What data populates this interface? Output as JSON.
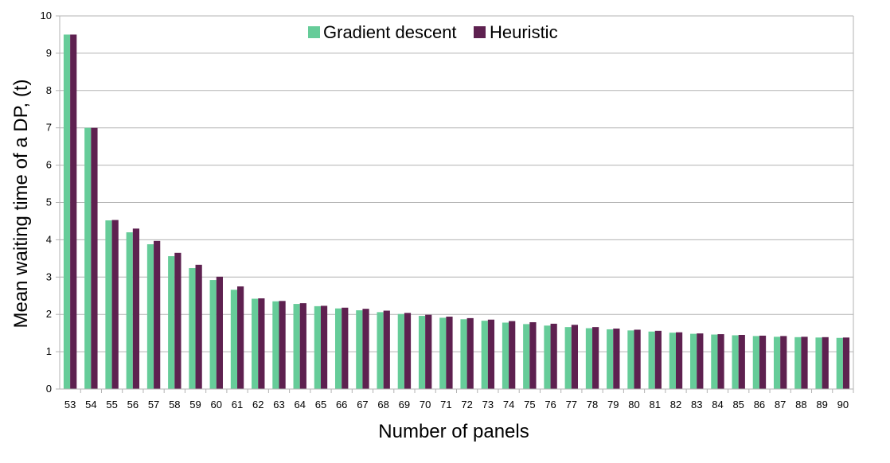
{
  "chart_data": {
    "type": "bar",
    "title": "",
    "xlabel": "Number of panels",
    "ylabel": "Mean waiting time of a DP, (t)",
    "ylim": [
      0,
      10
    ],
    "yticks": [
      "0",
      "1",
      "2",
      "3",
      "4",
      "5",
      "6",
      "7",
      "8",
      "9",
      "10"
    ],
    "grid": true,
    "legend_position": "top-center",
    "categories": [
      "53",
      "54",
      "55",
      "56",
      "57",
      "58",
      "59",
      "60",
      "61",
      "62",
      "63",
      "64",
      "65",
      "66",
      "67",
      "68",
      "69",
      "70",
      "71",
      "72",
      "73",
      "74",
      "75",
      "76",
      "77",
      "78",
      "79",
      "80",
      "81",
      "82",
      "83",
      "84",
      "85",
      "86",
      "87",
      "88",
      "89",
      "90"
    ],
    "series": [
      {
        "name": "Gradient descent",
        "color": "#66cc99",
        "values": [
          9.5,
          7.0,
          4.52,
          4.2,
          3.88,
          3.56,
          3.24,
          2.92,
          2.66,
          2.42,
          2.35,
          2.28,
          2.22,
          2.16,
          2.11,
          2.06,
          2.01,
          1.96,
          1.91,
          1.87,
          1.83,
          1.78,
          1.74,
          1.7,
          1.66,
          1.63,
          1.6,
          1.57,
          1.54,
          1.51,
          1.48,
          1.46,
          1.44,
          1.42,
          1.4,
          1.39,
          1.38,
          1.37
        ]
      },
      {
        "name": "Heuristic",
        "color": "#5e2150",
        "values": [
          9.5,
          7.0,
          4.53,
          4.3,
          3.97,
          3.65,
          3.33,
          3.01,
          2.75,
          2.43,
          2.36,
          2.3,
          2.23,
          2.18,
          2.15,
          2.1,
          2.04,
          1.99,
          1.94,
          1.9,
          1.86,
          1.82,
          1.79,
          1.75,
          1.72,
          1.66,
          1.62,
          1.59,
          1.56,
          1.52,
          1.49,
          1.47,
          1.45,
          1.43,
          1.42,
          1.4,
          1.39,
          1.38
        ]
      }
    ]
  }
}
